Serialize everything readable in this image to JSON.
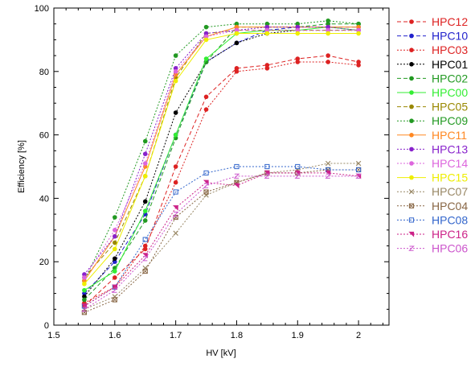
{
  "chart_data": {
    "type": "line",
    "xlabel": "HV [kV]",
    "ylabel": "Efficiency [%]",
    "xlim": [
      1.5,
      2.05
    ],
    "ylim": [
      0,
      100
    ],
    "xticks": [
      "1.5",
      "1.6",
      "1.7",
      "1.8",
      "1.9",
      "2"
    ],
    "yticks": [
      "0",
      "20",
      "40",
      "60",
      "80",
      "100"
    ],
    "grid": false,
    "legend_position": "right",
    "x": [
      1.55,
      1.6,
      1.65,
      1.7,
      1.75,
      1.8,
      1.85,
      1.9,
      1.95,
      2.0
    ],
    "series": [
      {
        "name": "HPC12",
        "color": "#dd2222",
        "marker": "dot",
        "dash": "dashed",
        "values": [
          6,
          15,
          24,
          50,
          72,
          81,
          82,
          84,
          85,
          83
        ]
      },
      {
        "name": "HPC10",
        "color": "#2222cc",
        "marker": "dot",
        "dash": "dashed",
        "values": [
          10,
          20,
          35,
          60,
          83,
          89,
          93,
          94,
          94,
          94
        ]
      },
      {
        "name": "HPC03",
        "color": "#dd2222",
        "marker": "dot",
        "dash": "dotted",
        "values": [
          7,
          12,
          25,
          45,
          68,
          80,
          81,
          83,
          83,
          82
        ]
      },
      {
        "name": "HPC01",
        "color": "#000000",
        "marker": "dot",
        "dash": "dotted",
        "values": [
          9,
          21,
          39,
          67,
          83,
          89,
          92,
          93,
          93,
          93
        ]
      },
      {
        "name": "HPC02",
        "color": "#229922",
        "marker": "dot",
        "dash": "dashed",
        "values": [
          8,
          18,
          33,
          59,
          83,
          94,
          94,
          94,
          95,
          95
        ]
      },
      {
        "name": "HPC00",
        "color": "#33ee33",
        "marker": "dot",
        "dash": "solid",
        "values": [
          11,
          17,
          36,
          60,
          84,
          92,
          93,
          93,
          94,
          93
        ]
      },
      {
        "name": "HPC05",
        "color": "#998800",
        "marker": "dot",
        "dash": "dashed",
        "values": [
          15,
          26,
          47,
          78,
          92,
          93,
          93,
          93,
          93,
          93
        ]
      },
      {
        "name": "HPC09",
        "color": "#229922",
        "marker": "dot",
        "dash": "dotted",
        "values": [
          14,
          34,
          58,
          85,
          94,
          95,
          95,
          95,
          96,
          95
        ]
      },
      {
        "name": "HPC11",
        "color": "#ff8822",
        "marker": "dot",
        "dash": "solid",
        "values": [
          14,
          28,
          50,
          79,
          91,
          94,
          94,
          94,
          94,
          94
        ]
      },
      {
        "name": "HPC13",
        "color": "#8822cc",
        "marker": "dot",
        "dash": "dotted",
        "values": [
          16,
          28,
          54,
          81,
          92,
          93,
          94,
          94,
          94,
          93
        ]
      },
      {
        "name": "HPC14",
        "color": "#dd66dd",
        "marker": "dot",
        "dash": "dotted",
        "values": [
          15,
          30,
          51,
          80,
          91,
          93,
          93,
          93,
          93,
          93
        ]
      },
      {
        "name": "HPC15",
        "color": "#eeee00",
        "marker": "dot",
        "dash": "solid",
        "values": [
          13,
          24,
          47,
          77,
          90,
          92,
          92,
          92,
          92,
          92
        ]
      },
      {
        "name": "HPC07",
        "color": "#998866",
        "marker": "x",
        "dash": "dotted",
        "values": [
          5,
          9,
          18,
          29,
          41,
          45,
          48,
          49,
          51,
          51
        ]
      },
      {
        "name": "HPC04",
        "color": "#886644",
        "marker": "square-x",
        "dash": "dotted",
        "values": [
          4,
          8,
          17,
          34,
          42,
          45,
          48,
          48,
          49,
          49
        ]
      },
      {
        "name": "HPC08",
        "color": "#3366cc",
        "marker": "square",
        "dash": "dotted",
        "values": [
          6,
          12,
          27,
          42,
          48,
          50,
          50,
          50,
          49,
          49
        ]
      },
      {
        "name": "HPC16",
        "color": "#cc2288",
        "marker": "half",
        "dash": "dotted",
        "values": [
          6,
          12,
          22,
          37,
          45,
          44,
          48,
          48,
          48,
          47
        ]
      },
      {
        "name": "HPC06",
        "color": "#cc55cc",
        "marker": "z",
        "dash": "dotted",
        "values": [
          5,
          11,
          21,
          35,
          44,
          47,
          47,
          47,
          47,
          47
        ]
      }
    ]
  }
}
